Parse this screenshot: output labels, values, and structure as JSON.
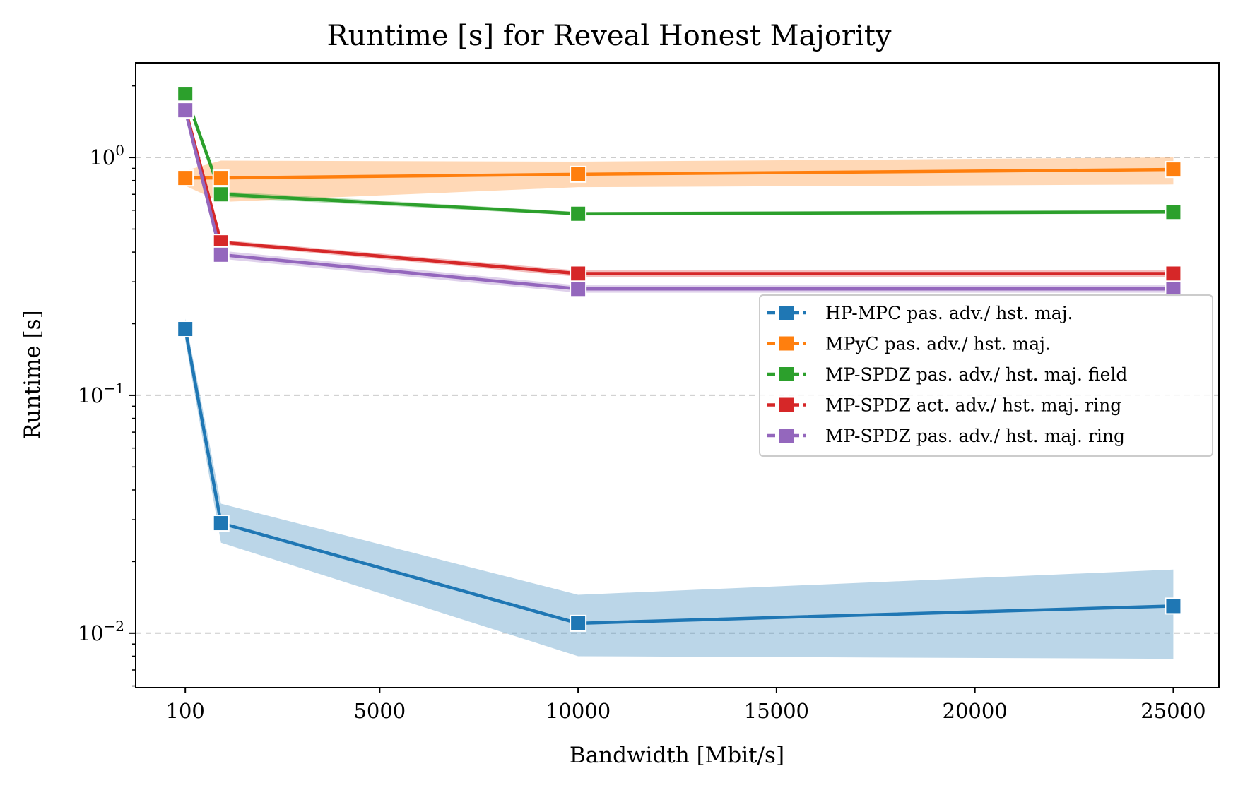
{
  "chart_data": {
    "type": "line",
    "title": "Runtime [s] for Reveal Honest Majority",
    "xlabel": "Bandwidth [Mbit/s]",
    "ylabel": "Runtime [s]",
    "xscale": "linear",
    "yscale": "log",
    "xlim": [
      -1150,
      26150
    ],
    "ylim": [
      0.0059,
      2.5
    ],
    "x_ticks": [
      100,
      5000,
      10000,
      15000,
      20000,
      25000
    ],
    "x_tick_labels": [
      "100",
      "5000",
      "10000",
      "15000",
      "20000",
      "25000"
    ],
    "y_ticks": [
      0.01,
      0.1,
      1
    ],
    "y_tick_labels": [
      {
        "base": "10",
        "exp": "−2"
      },
      {
        "base": "10",
        "exp": "−1"
      },
      {
        "base": "10",
        "exp": "0"
      }
    ],
    "grid": "horizontal-major-dashed",
    "legend_position": "center-right",
    "x": [
      100,
      1000,
      10000,
      25000
    ],
    "series": [
      {
        "name": "HP-MPC pas. adv./ hst. maj.",
        "color": "#1f77b4",
        "values": [
          0.19,
          0.029,
          0.011,
          0.013
        ],
        "band_low": [
          0.17,
          0.024,
          0.008,
          0.0078
        ],
        "band_high": [
          0.21,
          0.035,
          0.0145,
          0.0185
        ]
      },
      {
        "name": "MPyC pas. adv./ hst. maj.",
        "color": "#ff7f0e",
        "values": [
          0.82,
          0.82,
          0.85,
          0.89
        ],
        "band_low": [
          0.76,
          0.65,
          0.75,
          0.77
        ],
        "band_high": [
          0.88,
          0.97,
          0.96,
          1.0
        ]
      },
      {
        "name": "MP-SPDZ pas. adv./ hst. maj. field",
        "color": "#2ca02c",
        "values": [
          1.85,
          0.7,
          0.58,
          0.59
        ],
        "band_low": [
          1.8,
          0.68,
          0.57,
          0.58
        ],
        "band_high": [
          1.9,
          0.72,
          0.59,
          0.6
        ]
      },
      {
        "name": "MP-SPDZ act. adv./ hst. maj. ring",
        "color": "#d62728",
        "values": [
          1.6,
          0.44,
          0.325,
          0.325
        ],
        "band_low": [
          1.55,
          0.43,
          0.315,
          0.315
        ],
        "band_high": [
          1.65,
          0.45,
          0.335,
          0.335
        ]
      },
      {
        "name": "MP-SPDZ pas. adv./ hst. maj. ring",
        "color": "#9467bd",
        "values": [
          1.58,
          0.39,
          0.28,
          0.28
        ],
        "band_low": [
          1.53,
          0.375,
          0.27,
          0.27
        ],
        "band_high": [
          1.63,
          0.405,
          0.29,
          0.29
        ]
      }
    ]
  }
}
